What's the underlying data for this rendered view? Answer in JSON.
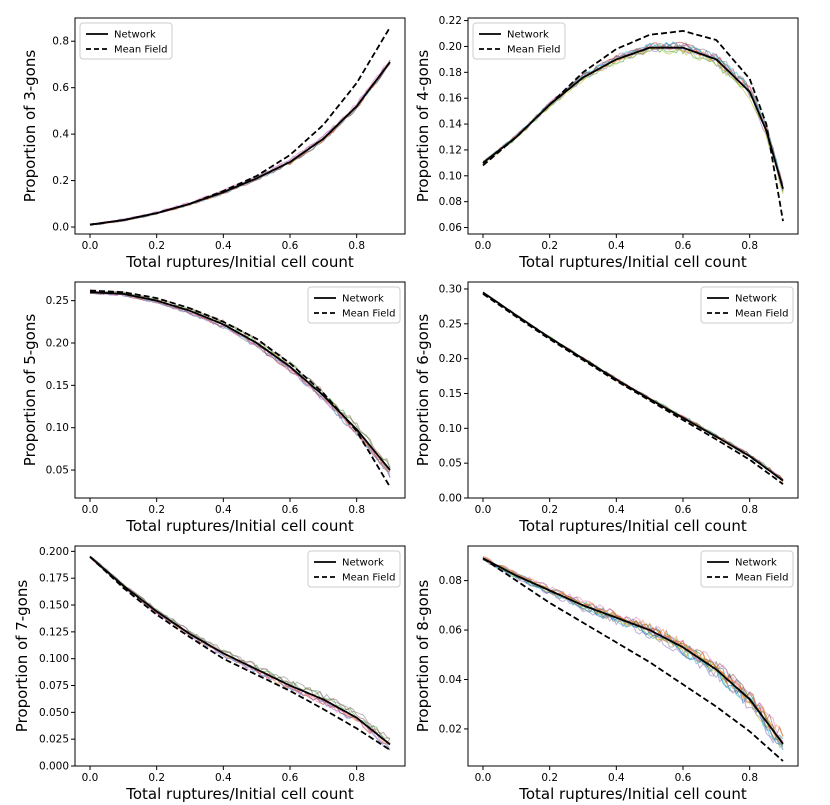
{
  "figure": {
    "style": {
      "network_color": "#000000",
      "meanfield_color": "#000000",
      "sample_palette": [
        "#1f77b4",
        "#ff7f0e",
        "#2ca02c",
        "#d62728",
        "#9467bd",
        "#8c564b",
        "#e377c2",
        "#7f7f7f",
        "#bcbd22",
        "#17becf"
      ]
    }
  },
  "chart_data": [
    {
      "type": "line",
      "xlabel": "Total ruptures/Initial cell count",
      "ylabel": "Proportion of 3-gons",
      "xlim": [
        -0.045,
        0.945
      ],
      "ylim": [
        -0.03,
        0.9
      ],
      "xticks": [
        "0.0",
        "0.2",
        "0.4",
        "0.6",
        "0.8"
      ],
      "yticks": [
        "0.0",
        "0.2",
        "0.4",
        "0.6",
        "0.8"
      ],
      "legend": {
        "position": "top-left",
        "entries": [
          "Network",
          "Mean Field"
        ]
      },
      "x": [
        0,
        0.1,
        0.2,
        0.3,
        0.4,
        0.5,
        0.6,
        0.7,
        0.8,
        0.9
      ],
      "series": [
        {
          "name": "Network",
          "style": "solid",
          "values": [
            0.01,
            0.03,
            0.06,
            0.1,
            0.15,
            0.21,
            0.28,
            0.38,
            0.52,
            0.71
          ]
        },
        {
          "name": "Mean Field",
          "style": "dashed",
          "values": [
            0.01,
            0.03,
            0.06,
            0.1,
            0.155,
            0.22,
            0.31,
            0.44,
            0.62,
            0.86
          ]
        }
      ],
      "samples": {
        "count": 8,
        "spread": 0.01
      }
    },
    {
      "type": "line",
      "xlabel": "Total ruptures/Initial cell count",
      "ylabel": "Proportion of 4-gons",
      "xlim": [
        -0.045,
        0.945
      ],
      "ylim": [
        0.055,
        0.222
      ],
      "xticks": [
        "0.0",
        "0.2",
        "0.4",
        "0.6",
        "0.8"
      ],
      "yticks": [
        "0.06",
        "0.08",
        "0.10",
        "0.12",
        "0.14",
        "0.16",
        "0.18",
        "0.20",
        "0.22"
      ],
      "legend": {
        "position": "top-left",
        "entries": [
          "Network",
          "Mean Field"
        ]
      },
      "x": [
        0,
        0.1,
        0.2,
        0.3,
        0.4,
        0.5,
        0.6,
        0.7,
        0.8,
        0.85,
        0.9
      ],
      "series": [
        {
          "name": "Network",
          "style": "solid",
          "values": [
            0.11,
            0.13,
            0.155,
            0.176,
            0.19,
            0.199,
            0.199,
            0.19,
            0.165,
            0.135,
            0.09
          ]
        },
        {
          "name": "Mean Field",
          "style": "dashed",
          "values": [
            0.108,
            0.13,
            0.155,
            0.18,
            0.198,
            0.209,
            0.212,
            0.205,
            0.175,
            0.14,
            0.065
          ]
        }
      ],
      "samples": {
        "count": 10,
        "spread": 0.004
      }
    },
    {
      "type": "line",
      "xlabel": "Total ruptures/Initial cell count",
      "ylabel": "Proportion of 5-gons",
      "xlim": [
        -0.045,
        0.945
      ],
      "ylim": [
        0.017,
        0.272
      ],
      "xticks": [
        "0.0",
        "0.2",
        "0.4",
        "0.6",
        "0.8"
      ],
      "yticks": [
        "0.05",
        "0.10",
        "0.15",
        "0.20",
        "0.25"
      ],
      "legend": {
        "position": "top-right",
        "entries": [
          "Network",
          "Mean Field"
        ]
      },
      "x": [
        0,
        0.1,
        0.2,
        0.3,
        0.4,
        0.5,
        0.6,
        0.7,
        0.8,
        0.9
      ],
      "series": [
        {
          "name": "Network",
          "style": "solid",
          "values": [
            0.26,
            0.258,
            0.25,
            0.238,
            0.222,
            0.2,
            0.172,
            0.138,
            0.098,
            0.05
          ]
        },
        {
          "name": "Mean Field",
          "style": "dashed",
          "values": [
            0.262,
            0.26,
            0.253,
            0.241,
            0.225,
            0.205,
            0.176,
            0.141,
            0.096,
            0.03
          ]
        }
      ],
      "samples": {
        "count": 8,
        "spread": 0.005
      }
    },
    {
      "type": "line",
      "xlabel": "Total ruptures/Initial cell count",
      "ylabel": "Proportion of 6-gons",
      "xlim": [
        -0.045,
        0.945
      ],
      "ylim": [
        0,
        0.31
      ],
      "xticks": [
        "0.0",
        "0.2",
        "0.4",
        "0.6",
        "0.8"
      ],
      "yticks": [
        "0.00",
        "0.05",
        "0.10",
        "0.15",
        "0.20",
        "0.25",
        "0.30"
      ],
      "legend": {
        "position": "top-right",
        "entries": [
          "Network",
          "Mean Field"
        ]
      },
      "x": [
        0,
        0.1,
        0.2,
        0.3,
        0.4,
        0.5,
        0.6,
        0.7,
        0.8,
        0.9
      ],
      "series": [
        {
          "name": "Network",
          "style": "solid",
          "values": [
            0.295,
            0.262,
            0.23,
            0.2,
            0.17,
            0.142,
            0.115,
            0.088,
            0.06,
            0.025
          ]
        },
        {
          "name": "Mean Field",
          "style": "dashed",
          "values": [
            0.293,
            0.26,
            0.228,
            0.198,
            0.168,
            0.14,
            0.112,
            0.084,
            0.055,
            0.02
          ]
        }
      ],
      "samples": {
        "count": 6,
        "spread": 0.003
      }
    },
    {
      "type": "line",
      "xlabel": "Total ruptures/Initial cell count",
      "ylabel": "Proportion of 7-gons",
      "xlim": [
        -0.045,
        0.945
      ],
      "ylim": [
        0,
        0.205
      ],
      "xticks": [
        "0.0",
        "0.2",
        "0.4",
        "0.6",
        "0.8"
      ],
      "yticks": [
        "0.000",
        "0.025",
        "0.050",
        "0.075",
        "0.100",
        "0.125",
        "0.150",
        "0.175",
        "0.200"
      ],
      "legend": {
        "position": "top-right",
        "entries": [
          "Network",
          "Mean Field"
        ]
      },
      "x": [
        0,
        0.1,
        0.2,
        0.3,
        0.4,
        0.5,
        0.6,
        0.7,
        0.8,
        0.9
      ],
      "series": [
        {
          "name": "Network",
          "style": "solid",
          "values": [
            0.195,
            0.168,
            0.144,
            0.123,
            0.105,
            0.09,
            0.075,
            0.062,
            0.045,
            0.02
          ]
        },
        {
          "name": "Mean Field",
          "style": "dashed",
          "values": [
            0.195,
            0.166,
            0.141,
            0.12,
            0.1,
            0.085,
            0.07,
            0.053,
            0.035,
            0.015
          ]
        }
      ],
      "samples": {
        "count": 8,
        "spread": 0.004
      }
    },
    {
      "type": "line",
      "xlabel": "Total ruptures/Initial cell count",
      "ylabel": "Proportion of 8-gons",
      "xlim": [
        -0.045,
        0.945
      ],
      "ylim": [
        0.005,
        0.094
      ],
      "xticks": [
        "0.0",
        "0.2",
        "0.4",
        "0.6",
        "0.8"
      ],
      "yticks": [
        "0.02",
        "0.04",
        "0.06",
        "0.08"
      ],
      "legend": {
        "position": "top-right",
        "entries": [
          "Network",
          "Mean Field"
        ]
      },
      "x": [
        0,
        0.1,
        0.2,
        0.3,
        0.4,
        0.5,
        0.6,
        0.7,
        0.8,
        0.9
      ],
      "series": [
        {
          "name": "Network",
          "style": "solid",
          "values": [
            0.089,
            0.082,
            0.076,
            0.07,
            0.065,
            0.06,
            0.053,
            0.044,
            0.032,
            0.014
          ]
        },
        {
          "name": "Mean Field",
          "style": "dashed",
          "values": [
            0.089,
            0.08,
            0.071,
            0.063,
            0.055,
            0.047,
            0.038,
            0.029,
            0.019,
            0.007
          ]
        }
      ],
      "samples": {
        "count": 12,
        "spread": 0.003
      }
    }
  ]
}
